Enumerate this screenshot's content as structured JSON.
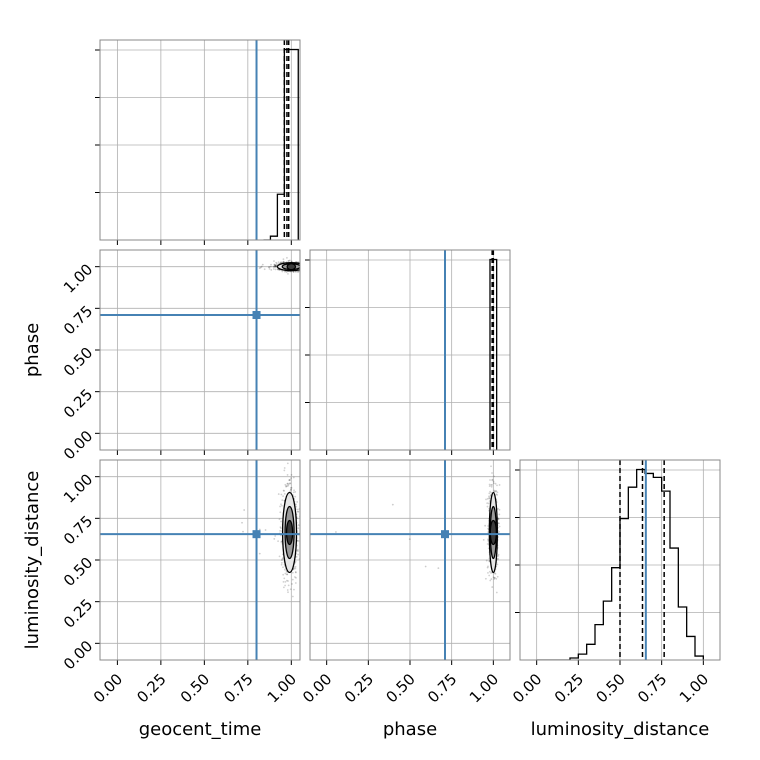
{
  "chart_data": {
    "type": "corner",
    "parameters": [
      "geocent_time",
      "phase",
      "luminosity_distance"
    ],
    "axis_ranges": [
      [
        -0.1,
        1.05
      ],
      [
        -0.1,
        1.1
      ],
      [
        -0.1,
        1.1
      ]
    ],
    "ticks": [
      0,
      0.25,
      0.5,
      0.75,
      1.0
    ],
    "tick_labels": [
      "0.00",
      "0.25",
      "0.50",
      "0.75",
      "1.00"
    ],
    "truths": [
      0.8,
      0.71,
      0.655
    ],
    "quantiles": [
      [
        0.96,
        0.975,
        0.985
      ],
      [
        0.993,
        0.998,
        1.0
      ],
      [
        0.5,
        0.635,
        0.765
      ]
    ],
    "grid": true,
    "colors": {
      "truth": "#4682b4",
      "histogram": "#000000",
      "density": "#000000"
    },
    "histograms": [
      {
        "parameter": "geocent_time",
        "edges": [
          0.84,
          0.88,
          0.92,
          0.96,
          1.0,
          1.04
        ],
        "values": [
          0,
          0.02,
          0.24,
          1.0,
          1.0
        ]
      },
      {
        "parameter": "phase",
        "edges": [
          0.98,
          1.0,
          1.02
        ],
        "values": [
          1.0,
          1.0
        ]
      },
      {
        "parameter": "luminosity_distance",
        "edges": [
          0.0,
          0.05,
          0.1,
          0.15,
          0.2,
          0.25,
          0.3,
          0.35,
          0.4,
          0.45,
          0.5,
          0.55,
          0.6,
          0.65,
          0.7,
          0.75,
          0.8,
          0.85,
          0.9,
          0.95,
          1.0
        ],
        "values": [
          0,
          0,
          0,
          0,
          0.01,
          0.03,
          0.08,
          0.18,
          0.3,
          0.47,
          0.72,
          0.88,
          0.97,
          0.95,
          0.93,
          0.86,
          0.57,
          0.27,
          0.12,
          0.02
        ]
      }
    ],
    "density_panels": [
      {
        "x": "geocent_time",
        "y": "phase",
        "center": [
          1.0,
          1.0
        ],
        "spread": [
          0.04,
          0.01
        ]
      },
      {
        "x": "geocent_time",
        "y": "luminosity_distance",
        "center": [
          0.99,
          0.665
        ],
        "spread": [
          0.02,
          0.12
        ]
      },
      {
        "x": "phase",
        "y": "luminosity_distance",
        "center": [
          1.0,
          0.665
        ],
        "spread": [
          0.005,
          0.12
        ]
      }
    ]
  }
}
